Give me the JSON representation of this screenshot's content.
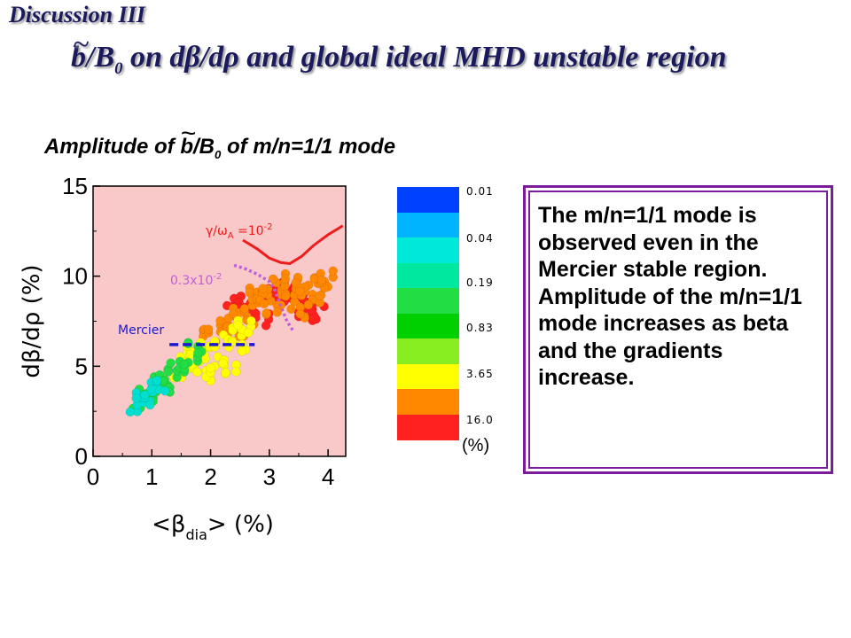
{
  "header": {
    "tag": "Discussion III",
    "title_b": "b",
    "title_tilde": "~",
    "title_rest_pre": "/B",
    "title_sub": "0",
    "title_rest": " on dβ/dρ and global ideal MHD unstable region"
  },
  "chart_heading": {
    "pre": "Amplitude of ",
    "b": "b",
    "tilde": "~",
    "mid": "/B",
    "sub": "0",
    "post": " of m/n=1/1 mode"
  },
  "note": {
    "text": "The m/n=1/1 mode is observed even in the Mercier stable region. Amplitude of the m/n=1/1 mode increases as beta and the gradients increase."
  },
  "colorbar": {
    "unit": "(%)",
    "levels": [
      {
        "label": "0.01",
        "color": "#0040ff"
      },
      {
        "label": "0.04",
        "color": "#00b4ff"
      },
      {
        "label": "0.19",
        "color": "#00e8b0"
      },
      {
        "label": "0.83",
        "color": "#00dd22"
      },
      {
        "label": "3.65",
        "color": "#ffff00"
      },
      {
        "label": "16.0",
        "color": "#ff2020"
      }
    ],
    "bands": [
      "#0040ff",
      "#00b4ff",
      "#00e8d8",
      "#00e8a0",
      "#22dd44",
      "#00d000",
      "#88ee22",
      "#ffff00",
      "#ff8800",
      "#ff2020"
    ]
  },
  "chart_data": {
    "type": "scatter",
    "xlabel": "<β_dia> (%)",
    "ylabel": "dβ/dρ (%)",
    "xlim": [
      0,
      4.3
    ],
    "ylim": [
      0,
      15
    ],
    "x_ticks": [
      "0",
      "1",
      "2",
      "3",
      "4"
    ],
    "y_ticks": [
      "0",
      "5",
      "10",
      "15"
    ],
    "background_color": "#f9c8c8",
    "curves": [
      {
        "label_pre": "γ/ω",
        "label_sub": "A",
        "label_post": " =10",
        "label_sup": "-2",
        "color": "#ee1c1c",
        "style": "solid",
        "x": [
          2.55,
          2.8,
          3.0,
          3.2,
          3.35,
          3.55,
          3.75,
          4.0,
          4.25
        ],
        "y": [
          12.0,
          11.5,
          11.0,
          10.75,
          10.7,
          11.1,
          11.7,
          12.3,
          12.8
        ]
      },
      {
        "label_pre": "0.3x10",
        "label_sub": "",
        "label_post": "",
        "label_sup": "-2",
        "color": "#c060d8",
        "style": "dotted",
        "x": [
          2.4,
          2.6,
          2.8,
          3.0,
          3.1,
          3.2,
          3.3,
          3.4
        ],
        "y": [
          10.6,
          10.4,
          10.1,
          9.7,
          9.2,
          8.3,
          7.5,
          7.0
        ]
      },
      {
        "label_pre": "Mercier",
        "label_sub": "",
        "label_post": "",
        "label_sup": "",
        "color": "#1a1ad0",
        "style": "dashed",
        "x": [
          1.3,
          2.75
        ],
        "y": [
          6.2,
          6.2
        ]
      }
    ],
    "series": [
      {
        "name": "16.0",
        "color": "#ff2020",
        "x": [
          2.4,
          2.6,
          2.8,
          3.0,
          3.2,
          3.45,
          3.55,
          3.6,
          3.7,
          3.8,
          2.9,
          3.3
        ],
        "y": [
          8.6,
          8.2,
          8.7,
          9.0,
          9.3,
          9.1,
          8.8,
          8.1,
          7.8,
          8.0,
          7.6,
          8.9
        ]
      },
      {
        "name": "3.65",
        "color": "#ff8800",
        "x": [
          2.3,
          2.5,
          2.7,
          2.9,
          3.1,
          3.3,
          3.5,
          3.7,
          3.9,
          2.6,
          2.8,
          3.0,
          3.4,
          3.6,
          3.8,
          1.95,
          2.1,
          2.35,
          3.2,
          3.95
        ],
        "y": [
          7.5,
          7.9,
          8.4,
          8.9,
          9.3,
          8.7,
          8.0,
          9.5,
          9.6,
          7.0,
          9.0,
          8.2,
          9.6,
          9.0,
          8.7,
          6.7,
          7.2,
          6.9,
          9.8,
          10.0
        ]
      },
      {
        "name": "0.83",
        "color": "#ffff00",
        "x": [
          1.5,
          1.6,
          1.8,
          2.0,
          2.2,
          2.4,
          1.9,
          2.1,
          2.5,
          1.7,
          2.6,
          2.3
        ],
        "y": [
          4.6,
          5.2,
          5.3,
          5.8,
          6.4,
          6.8,
          4.5,
          5.0,
          6.1,
          6.0,
          7.2,
          4.9
        ]
      },
      {
        "name": "0.19",
        "color": "#22dd44",
        "x": [
          0.8,
          0.9,
          1.05,
          1.15,
          1.2,
          1.3,
          1.45,
          1.65,
          1.75
        ],
        "y": [
          2.9,
          3.4,
          3.7,
          4.2,
          3.9,
          4.5,
          5.0,
          5.2,
          6.0
        ]
      },
      {
        "name": "0.04",
        "color": "#00e0d0",
        "x": [
          0.75,
          0.85,
          1.0,
          1.1
        ],
        "y": [
          2.7,
          3.2,
          3.6,
          3.9
        ]
      }
    ]
  }
}
